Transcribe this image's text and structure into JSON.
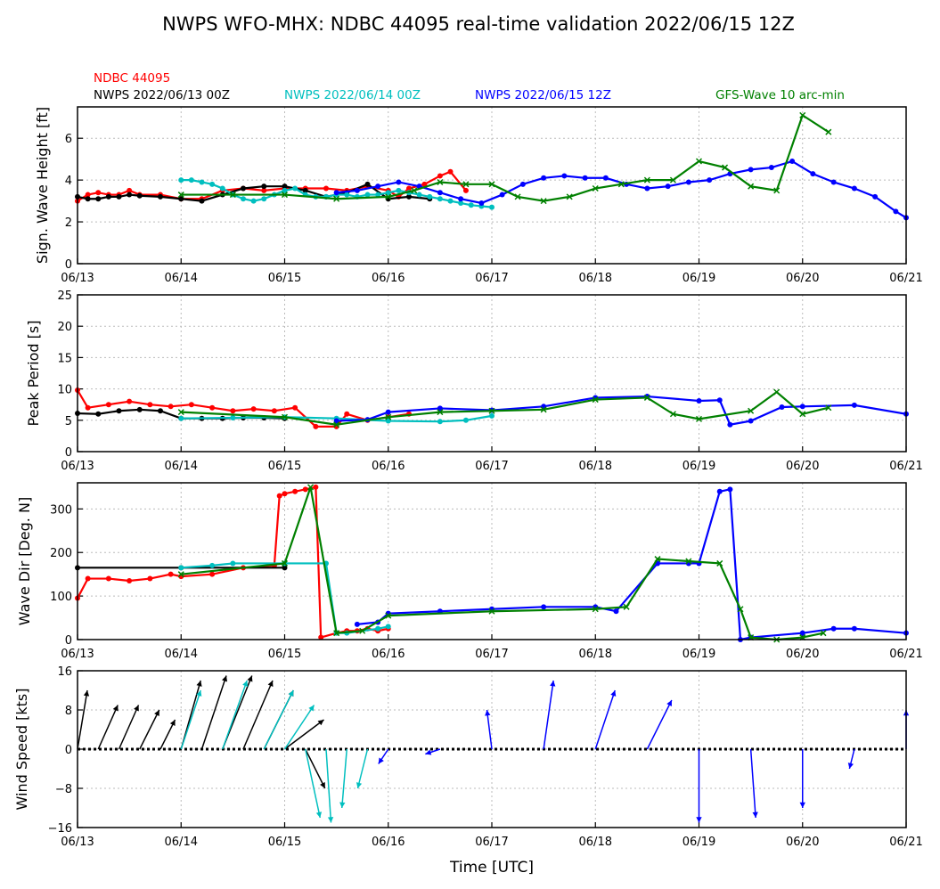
{
  "chart_data": {
    "type": "line",
    "title": "NWPS WFO-MHX: NDBC 44095 real-time validation 2022/06/15 12Z",
    "xlabel": "Time [UTC]",
    "x_ticks": [
      "06/13",
      "06/14",
      "06/15",
      "06/16",
      "06/17",
      "06/18",
      "06/19",
      "06/20",
      "06/21"
    ],
    "x_range_days": [
      0,
      8
    ],
    "grid": true,
    "legend": [
      {
        "name": "NDBC 44095",
        "color": "#ff0000"
      },
      {
        "name": "NWPS 2022/06/13 00Z",
        "color": "#000000"
      },
      {
        "name": "NWPS 2022/06/14 00Z",
        "color": "#00bfbf"
      },
      {
        "name": "NWPS 2022/06/15 12Z",
        "color": "#0000ff"
      },
      {
        "name": "GFS-Wave 10 arc-min",
        "color": "#008000"
      }
    ],
    "panels": [
      {
        "ylabel": "Sign. Wave Height [ft]",
        "ylim": [
          0,
          7.5
        ],
        "y_ticks": [
          "0",
          "2",
          "4",
          "6"
        ],
        "y_tick_values": [
          0,
          2,
          4,
          6
        ],
        "series": [
          {
            "name": "NDBC 44095",
            "color": "#ff0000",
            "marker": "dot",
            "x": [
              0,
              0.1,
              0.2,
              0.3,
              0.4,
              0.5,
              0.6,
              0.8,
              1.0,
              1.2,
              1.4,
              1.6,
              1.8,
              2.0,
              2.2,
              2.4,
              2.6,
              2.8,
              3.0,
              3.1,
              3.2,
              3.35,
              3.5,
              3.6,
              3.75
            ],
            "y": [
              3.0,
              3.3,
              3.4,
              3.3,
              3.3,
              3.5,
              3.3,
              3.3,
              3.1,
              3.1,
              3.5,
              3.6,
              3.5,
              3.6,
              3.6,
              3.6,
              3.5,
              3.7,
              3.5,
              3.2,
              3.6,
              3.8,
              4.2,
              4.4,
              3.5
            ]
          },
          {
            "name": "NWPS 2022/06/13 00Z",
            "color": "#000000",
            "marker": "dot",
            "x": [
              0,
              0.1,
              0.2,
              0.3,
              0.4,
              0.5,
              0.6,
              0.8,
              1.0,
              1.2,
              1.4,
              1.6,
              1.8,
              2.0,
              2.2,
              2.4,
              2.6,
              2.8,
              3.0,
              3.2,
              3.4
            ],
            "y": [
              3.2,
              3.1,
              3.1,
              3.2,
              3.2,
              3.3,
              3.25,
              3.2,
              3.1,
              3.0,
              3.3,
              3.6,
              3.7,
              3.7,
              3.5,
              3.2,
              3.4,
              3.8,
              3.1,
              3.2,
              3.1
            ]
          },
          {
            "name": "NWPS 2022/06/14 00Z",
            "color": "#00bfbf",
            "marker": "dot",
            "x": [
              1.0,
              1.1,
              1.2,
              1.3,
              1.4,
              1.5,
              1.6,
              1.7,
              1.8,
              1.9,
              2.0,
              2.1,
              2.2,
              2.3,
              2.4,
              2.5,
              2.6,
              2.7,
              2.8,
              2.9,
              3.0,
              3.1,
              3.2,
              3.3,
              3.4,
              3.5,
              3.6,
              3.7,
              3.8,
              3.9,
              4.0
            ],
            "y": [
              4.0,
              4.0,
              3.9,
              3.8,
              3.6,
              3.3,
              3.1,
              3.0,
              3.1,
              3.3,
              3.5,
              3.6,
              3.3,
              3.2,
              3.2,
              3.3,
              3.3,
              3.2,
              3.3,
              3.3,
              3.4,
              3.5,
              3.4,
              3.3,
              3.2,
              3.1,
              3.0,
              2.9,
              2.8,
              2.75,
              2.7
            ]
          },
          {
            "name": "NWPS 2022/06/15 12Z",
            "color": "#0000ff",
            "marker": "dot",
            "x": [
              2.5,
              2.7,
              2.9,
              3.1,
              3.3,
              3.5,
              3.7,
              3.9,
              4.1,
              4.3,
              4.5,
              4.7,
              4.9,
              5.1,
              5.3,
              5.5,
              5.7,
              5.9,
              6.1,
              6.3,
              6.5,
              6.7,
              6.9,
              7.1,
              7.3,
              7.5,
              7.7,
              7.9,
              8.0
            ],
            "y": [
              3.4,
              3.5,
              3.7,
              3.9,
              3.7,
              3.4,
              3.1,
              2.9,
              3.3,
              3.8,
              4.1,
              4.2,
              4.1,
              4.1,
              3.8,
              3.6,
              3.7,
              3.9,
              4.0,
              4.3,
              4.5,
              4.6,
              4.9,
              4.3,
              3.9,
              3.6,
              3.2,
              2.5,
              2.2
            ]
          },
          {
            "name": "GFS-Wave 10 arc-min",
            "color": "#008000",
            "marker": "x",
            "x": [
              1.0,
              1.5,
              2.0,
              2.5,
              3.0,
              3.25,
              3.5,
              3.75,
              4.0,
              4.25,
              4.5,
              4.75,
              5.0,
              5.25,
              5.5,
              5.75,
              6.0,
              6.25,
              6.5,
              6.75,
              7.0,
              7.25
            ],
            "y": [
              3.3,
              3.3,
              3.3,
              3.1,
              3.2,
              3.5,
              3.9,
              3.8,
              3.8,
              3.2,
              3.0,
              3.2,
              3.6,
              3.8,
              4.0,
              4.0,
              4.9,
              4.6,
              3.7,
              3.5,
              7.1,
              6.3
            ]
          }
        ]
      },
      {
        "ylabel": "Peak Period [s]",
        "ylim": [
          0,
          25
        ],
        "y_ticks": [
          "0",
          "5",
          "10",
          "15",
          "20",
          "25"
        ],
        "y_tick_values": [
          0,
          5,
          10,
          15,
          20,
          25
        ],
        "series": [
          {
            "name": "NDBC 44095",
            "color": "#ff0000",
            "marker": "dot",
            "x": [
              0,
              0.1,
              0.3,
              0.5,
              0.7,
              0.9,
              1.1,
              1.3,
              1.5,
              1.7,
              1.9,
              2.1,
              2.3,
              2.5,
              2.6,
              2.8,
              3.0,
              3.2
            ],
            "y": [
              9.8,
              7.0,
              7.5,
              8.0,
              7.5,
              7.2,
              7.5,
              7.0,
              6.5,
              6.8,
              6.5,
              7.0,
              4.0,
              4.0,
              6.0,
              5.0,
              5.5,
              6.0
            ]
          },
          {
            "name": "NWPS 2022/06/13 00Z",
            "color": "#000000",
            "marker": "dot",
            "x": [
              0,
              0.2,
              0.4,
              0.6,
              0.8,
              1.0,
              1.2,
              1.4,
              1.6,
              1.8,
              2.0
            ],
            "y": [
              6.1,
              6.0,
              6.5,
              6.7,
              6.5,
              5.3,
              5.3,
              5.3,
              5.4,
              5.4,
              5.3
            ]
          },
          {
            "name": "NWPS 2022/06/14 00Z",
            "color": "#00bfbf",
            "marker": "dot",
            "x": [
              1.0,
              1.5,
              2.0,
              2.5,
              3.0,
              3.5,
              3.75,
              4.0
            ],
            "y": [
              5.3,
              5.4,
              5.5,
              5.3,
              4.9,
              4.8,
              5.0,
              5.7
            ]
          },
          {
            "name": "NWPS 2022/06/15 12Z",
            "color": "#0000ff",
            "marker": "dot",
            "x": [
              2.5,
              2.8,
              3.0,
              3.5,
              4.0,
              4.5,
              5.0,
              5.5,
              6.0,
              6.2,
              6.3,
              6.5,
              6.8,
              7.0,
              7.5,
              8.0
            ],
            "y": [
              4.9,
              5.1,
              6.3,
              6.9,
              6.6,
              7.2,
              8.6,
              8.8,
              8.1,
              8.2,
              4.3,
              4.9,
              7.1,
              7.2,
              7.4,
              6.0
            ]
          },
          {
            "name": "GFS-Wave 10 arc-min",
            "color": "#008000",
            "marker": "x",
            "x": [
              1.0,
              2.0,
              2.5,
              3.0,
              3.5,
              4.0,
              4.5,
              5.0,
              5.5,
              5.75,
              6.0,
              6.5,
              6.75,
              7.0,
              7.25
            ],
            "y": [
              6.3,
              5.5,
              4.3,
              5.5,
              6.3,
              6.5,
              6.7,
              8.3,
              8.6,
              6.0,
              5.2,
              6.5,
              9.5,
              6.0,
              7.0
            ]
          }
        ]
      },
      {
        "ylabel": "Wave Dir [Deg. N]",
        "ylim": [
          0,
          360
        ],
        "y_ticks": [
          "0",
          "100",
          "200",
          "300"
        ],
        "y_tick_values": [
          0,
          100,
          200,
          300
        ],
        "series": [
          {
            "name": "NDBC 44095",
            "color": "#ff0000",
            "marker": "dot",
            "x": [
              0,
              0.1,
              0.3,
              0.5,
              0.7,
              0.9,
              1.0,
              1.3,
              1.6,
              1.9,
              1.95,
              2.0,
              2.1,
              2.2,
              2.3,
              2.35,
              2.5,
              2.6,
              2.7,
              2.8,
              2.9,
              3.0
            ],
            "y": [
              95,
              140,
              140,
              135,
              140,
              150,
              145,
              150,
              165,
              170,
              330,
              335,
              340,
              345,
              350,
              5,
              15,
              20,
              20,
              25,
              20,
              25
            ]
          },
          {
            "name": "NWPS 2022/06/13 00Z",
            "color": "#000000",
            "marker": "dot",
            "x": [
              0,
              1.0,
              2.0
            ],
            "y": [
              165,
              165,
              165
            ]
          },
          {
            "name": "NWPS 2022/06/14 00Z",
            "color": "#00bfbf",
            "marker": "dot",
            "x": [
              1.0,
              1.3,
              1.5,
              2.0,
              2.4,
              2.5,
              2.6,
              2.9,
              3.0
            ],
            "y": [
              165,
              170,
              175,
              175,
              175,
              15,
              15,
              25,
              30
            ]
          },
          {
            "name": "NWPS 2022/06/15 12Z",
            "color": "#0000ff",
            "marker": "dot",
            "x": [
              2.7,
              2.9,
              3.0,
              3.5,
              4.0,
              4.5,
              5.0,
              5.2,
              5.6,
              5.9,
              6.0,
              6.2,
              6.3,
              6.4,
              6.5,
              7.0,
              7.3,
              7.5,
              8.0
            ],
            "y": [
              35,
              40,
              60,
              65,
              70,
              75,
              75,
              65,
              175,
              175,
              175,
              340,
              345,
              0,
              5,
              15,
              25,
              25,
              15
            ]
          },
          {
            "name": "GFS-Wave 10 arc-min",
            "color": "#008000",
            "marker": "x",
            "x": [
              1.0,
              2.0,
              2.25,
              2.5,
              2.75,
              3.0,
              4.0,
              5.0,
              5.3,
              5.6,
              5.9,
              6.2,
              6.4,
              6.5,
              6.75,
              7.0,
              7.2
            ],
            "y": [
              150,
              175,
              350,
              15,
              20,
              55,
              65,
              70,
              75,
              185,
              180,
              175,
              70,
              5,
              0,
              5,
              15
            ]
          }
        ]
      },
      {
        "ylabel": "Wind Speed [kts]",
        "ylim": [
          -16,
          16
        ],
        "y_ticks": [
          "−16",
          "−8",
          "0",
          "8",
          "16"
        ],
        "y_tick_values": [
          -16,
          -8,
          0,
          8,
          16
        ],
        "type": "quiver",
        "series": [
          {
            "name": "NWPS 2022/06/13 00Z",
            "color": "#000000",
            "x": [
              0,
              0.2,
              0.4,
              0.6,
              0.8,
              1.0,
              1.2,
              1.4,
              1.6,
              1.8,
              2.0,
              2.2
            ],
            "u": [
              2,
              4,
              4,
              4,
              3,
              4,
              5,
              6,
              6,
              6,
              8,
              4
            ],
            "v": [
              12,
              9,
              9,
              8,
              6,
              14,
              15,
              15,
              14,
              12,
              6,
              -8
            ]
          },
          {
            "name": "NWPS 2022/06/14 00Z",
            "color": "#00bfbf",
            "x": [
              1.0,
              1.4,
              1.8,
              2.0,
              2.2,
              2.4,
              2.6,
              2.8
            ],
            "u": [
              4,
              5,
              6,
              6,
              3,
              1,
              -1,
              -2
            ],
            "v": [
              12,
              14,
              12,
              9,
              -14,
              -15,
              -12,
              -8
            ]
          },
          {
            "name": "NWPS 2022/06/15 12Z",
            "color": "#0000ff",
            "x": [
              3.0,
              3.5,
              4.0,
              4.5,
              5.0,
              5.5,
              6.0,
              6.5,
              7.0,
              7.5,
              8.0
            ],
            "u": [
              -2,
              -3,
              -1,
              2,
              4,
              5,
              0,
              1,
              0,
              -1,
              0
            ],
            "v": [
              -3,
              -1,
              8,
              14,
              12,
              10,
              -15,
              -14,
              -12,
              -4,
              8
            ]
          }
        ]
      }
    ]
  }
}
